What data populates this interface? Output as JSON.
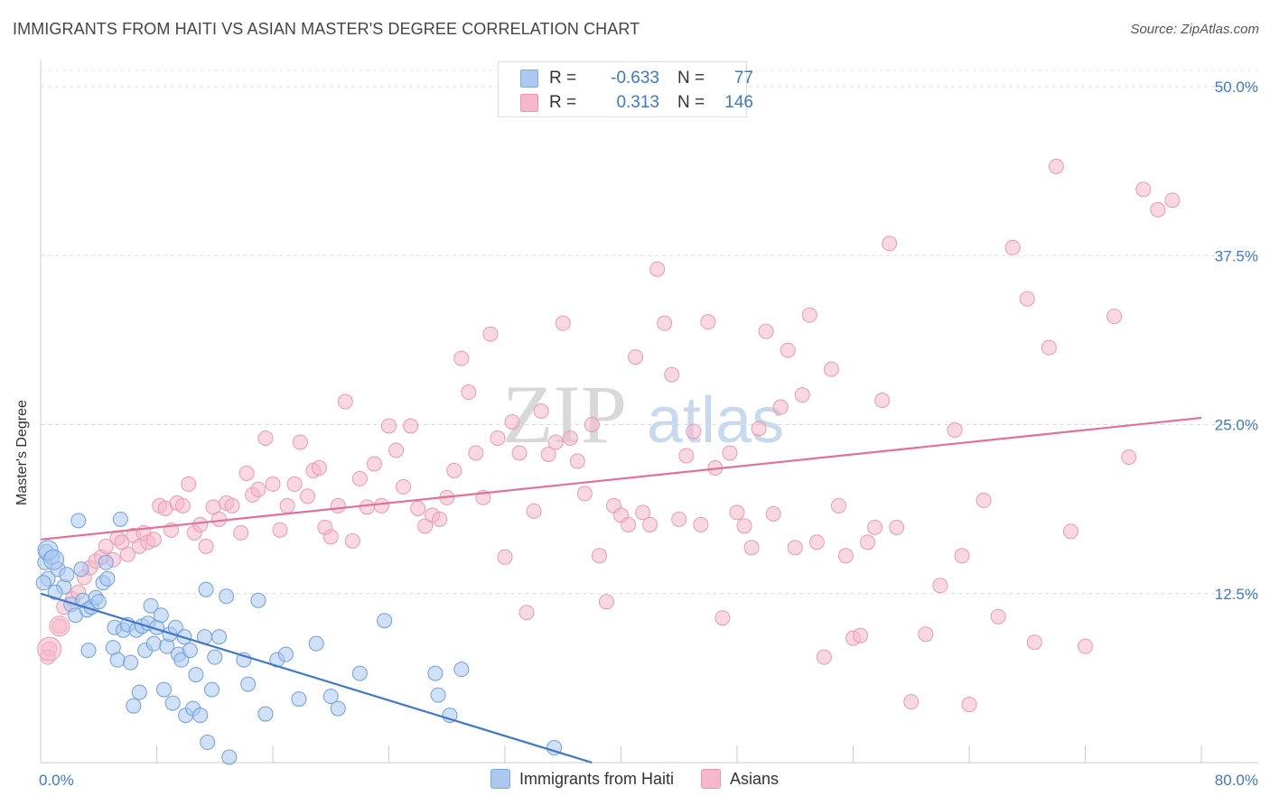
{
  "title": "IMMIGRANTS FROM HAITI VS ASIAN MASTER'S DEGREE CORRELATION CHART",
  "source": "Source: ZipAtlas.com",
  "watermark": {
    "zip": "ZIP",
    "atlas": "atlas"
  },
  "legend": {
    "rows": [
      {
        "r_label": "R =",
        "r_value": "-0.633",
        "n_label": "N =",
        "n_value": "77",
        "color": "#aac8f0"
      },
      {
        "r_label": "R =",
        "r_value": "0.313",
        "n_label": "N =",
        "n_value": "146",
        "color": "#f5b8ca"
      }
    ]
  },
  "bottom_legend": [
    {
      "label": "Immigrants from Haiti",
      "color": "#aac8f0"
    },
    {
      "label": "Asians",
      "color": "#f5b8ca"
    }
  ],
  "chart_data": {
    "type": "scatter",
    "title": "IMMIGRANTS FROM HAITI VS ASIAN MASTER'S DEGREE CORRELATION CHART",
    "xlabel": "",
    "ylabel": "Master's Degree",
    "xlim": [
      0,
      80
    ],
    "ylim": [
      0,
      50
    ],
    "x_tick_labels": [
      "0.0%",
      "80.0%"
    ],
    "y_tick_labels": [
      "12.5%",
      "25.0%",
      "37.5%",
      "50.0%"
    ],
    "y_ticks": [
      12.5,
      25.0,
      37.5,
      50.0
    ],
    "grid": true,
    "legend_position": "top-center",
    "colors": {
      "haiti": "#3f78c9",
      "haiti_fill": "#aac8f0",
      "asians": "#e0719a",
      "asians_fill": "#f5b8ca",
      "tick": "#3f78c9"
    },
    "series": [
      {
        "name": "Immigrants from Haiti",
        "trend": {
          "x": [
            0,
            38
          ],
          "y": [
            12.5,
            0
          ]
        },
        "points": [
          [
            0.3,
            14.8
          ],
          [
            0.4,
            15.6
          ],
          [
            0.5,
            13.6
          ],
          [
            0.8,
            15.2
          ],
          [
            1.2,
            14.3
          ],
          [
            1.6,
            13.0
          ],
          [
            1.8,
            13.9
          ],
          [
            2.1,
            11.7
          ],
          [
            2.4,
            10.9
          ],
          [
            2.6,
            17.9
          ],
          [
            2.8,
            14.3
          ],
          [
            2.9,
            12.0
          ],
          [
            3.2,
            11.3
          ],
          [
            3.3,
            8.3
          ],
          [
            3.5,
            11.5
          ],
          [
            3.8,
            12.2
          ],
          [
            4.0,
            11.9
          ],
          [
            4.3,
            13.3
          ],
          [
            4.5,
            14.8
          ],
          [
            4.6,
            13.6
          ],
          [
            5.0,
            8.5
          ],
          [
            5.1,
            10.0
          ],
          [
            5.3,
            7.6
          ],
          [
            5.5,
            18.0
          ],
          [
            5.7,
            9.8
          ],
          [
            6.0,
            10.2
          ],
          [
            6.2,
            7.4
          ],
          [
            6.4,
            4.2
          ],
          [
            6.6,
            9.8
          ],
          [
            6.8,
            5.2
          ],
          [
            7.0,
            10.1
          ],
          [
            7.2,
            8.3
          ],
          [
            7.4,
            10.3
          ],
          [
            7.6,
            11.6
          ],
          [
            7.8,
            8.8
          ],
          [
            8.0,
            10.0
          ],
          [
            8.3,
            10.9
          ],
          [
            8.5,
            5.4
          ],
          [
            8.7,
            8.6
          ],
          [
            8.9,
            9.5
          ],
          [
            9.1,
            4.4
          ],
          [
            9.3,
            10.0
          ],
          [
            9.5,
            8.0
          ],
          [
            9.7,
            7.6
          ],
          [
            9.9,
            9.3
          ],
          [
            10.0,
            3.5
          ],
          [
            10.3,
            8.3
          ],
          [
            10.5,
            4.0
          ],
          [
            10.7,
            6.5
          ],
          [
            11.0,
            3.5
          ],
          [
            11.3,
            9.3
          ],
          [
            11.4,
            12.8
          ],
          [
            11.5,
            1.5
          ],
          [
            11.8,
            5.4
          ],
          [
            12.0,
            7.8
          ],
          [
            12.3,
            9.3
          ],
          [
            12.8,
            12.3
          ],
          [
            13.0,
            0.4
          ],
          [
            14.0,
            7.6
          ],
          [
            14.3,
            5.8
          ],
          [
            15.0,
            12.0
          ],
          [
            15.5,
            3.6
          ],
          [
            16.3,
            7.6
          ],
          [
            16.9,
            8.0
          ],
          [
            17.8,
            4.7
          ],
          [
            19.0,
            8.8
          ],
          [
            20.0,
            4.9
          ],
          [
            20.5,
            4.0
          ],
          [
            22.0,
            6.6
          ],
          [
            23.7,
            10.5
          ],
          [
            27.2,
            6.6
          ],
          [
            27.4,
            5.0
          ],
          [
            28.2,
            3.5
          ],
          [
            29.0,
            6.9
          ],
          [
            35.4,
            1.1
          ],
          [
            0.2,
            13.3
          ],
          [
            1.0,
            12.6
          ]
        ],
        "big_points": [
          [
            0.5,
            15.7
          ],
          [
            0.9,
            15.0
          ]
        ]
      },
      {
        "name": "Asians",
        "trend": {
          "x": [
            0,
            80
          ],
          "y": [
            16.5,
            25.5
          ]
        },
        "points": [
          [
            0.6,
            8.4
          ],
          [
            0.5,
            7.8
          ],
          [
            1.3,
            10.1
          ],
          [
            1.6,
            11.5
          ],
          [
            2.2,
            12.1
          ],
          [
            2.6,
            12.6
          ],
          [
            3.0,
            13.7
          ],
          [
            3.4,
            14.4
          ],
          [
            3.8,
            14.9
          ],
          [
            4.2,
            15.2
          ],
          [
            4.5,
            16.0
          ],
          [
            5.0,
            15.0
          ],
          [
            5.3,
            16.6
          ],
          [
            5.6,
            16.3
          ],
          [
            6.0,
            15.4
          ],
          [
            6.4,
            16.8
          ],
          [
            6.8,
            16.0
          ],
          [
            7.1,
            17.0
          ],
          [
            7.4,
            16.3
          ],
          [
            7.8,
            16.5
          ],
          [
            8.2,
            19.0
          ],
          [
            8.6,
            18.8
          ],
          [
            9.0,
            17.2
          ],
          [
            9.4,
            19.2
          ],
          [
            9.8,
            19.0
          ],
          [
            10.2,
            20.6
          ],
          [
            10.6,
            17.0
          ],
          [
            11.0,
            17.6
          ],
          [
            11.4,
            16.0
          ],
          [
            11.9,
            18.9
          ],
          [
            12.3,
            18.0
          ],
          [
            12.8,
            19.2
          ],
          [
            13.2,
            19.0
          ],
          [
            13.8,
            17.0
          ],
          [
            14.2,
            21.4
          ],
          [
            14.6,
            19.8
          ],
          [
            15.0,
            20.2
          ],
          [
            15.5,
            24.0
          ],
          [
            16.0,
            20.6
          ],
          [
            16.5,
            17.2
          ],
          [
            17.0,
            19.0
          ],
          [
            17.5,
            20.6
          ],
          [
            17.9,
            23.7
          ],
          [
            18.4,
            19.7
          ],
          [
            18.8,
            21.6
          ],
          [
            19.2,
            21.8
          ],
          [
            19.6,
            17.4
          ],
          [
            20.0,
            16.7
          ],
          [
            20.5,
            19.0
          ],
          [
            21.0,
            26.7
          ],
          [
            21.5,
            16.4
          ],
          [
            22.0,
            21.0
          ],
          [
            22.5,
            18.9
          ],
          [
            23.0,
            22.1
          ],
          [
            23.5,
            19.0
          ],
          [
            24.0,
            24.9
          ],
          [
            24.5,
            23.1
          ],
          [
            25.0,
            20.4
          ],
          [
            25.5,
            24.9
          ],
          [
            26.0,
            18.8
          ],
          [
            26.5,
            17.5
          ],
          [
            27.0,
            18.3
          ],
          [
            27.5,
            18.0
          ],
          [
            28.0,
            19.6
          ],
          [
            28.5,
            21.6
          ],
          [
            29.0,
            29.9
          ],
          [
            29.5,
            27.4
          ],
          [
            30.0,
            22.9
          ],
          [
            30.5,
            19.6
          ],
          [
            31.0,
            31.7
          ],
          [
            31.5,
            24.0
          ],
          [
            32.0,
            15.2
          ],
          [
            32.5,
            25.2
          ],
          [
            33.0,
            22.9
          ],
          [
            33.5,
            11.1
          ],
          [
            34.0,
            18.6
          ],
          [
            34.5,
            26.0
          ],
          [
            35.0,
            22.8
          ],
          [
            35.5,
            23.7
          ],
          [
            36.0,
            32.5
          ],
          [
            36.5,
            24.0
          ],
          [
            37.0,
            22.3
          ],
          [
            37.5,
            19.9
          ],
          [
            38.0,
            25.0
          ],
          [
            38.5,
            15.3
          ],
          [
            39.0,
            11.9
          ],
          [
            39.5,
            19.0
          ],
          [
            40.0,
            18.3
          ],
          [
            40.5,
            17.6
          ],
          [
            41.0,
            30.0
          ],
          [
            41.5,
            18.5
          ],
          [
            42.0,
            17.6
          ],
          [
            42.5,
            36.5
          ],
          [
            43.0,
            32.5
          ],
          [
            43.5,
            28.7
          ],
          [
            44.0,
            18.0
          ],
          [
            44.5,
            22.7
          ],
          [
            45.0,
            24.5
          ],
          [
            45.5,
            17.6
          ],
          [
            46.0,
            32.6
          ],
          [
            46.5,
            21.8
          ],
          [
            47.0,
            10.7
          ],
          [
            47.5,
            22.9
          ],
          [
            48.0,
            18.5
          ],
          [
            48.5,
            17.5
          ],
          [
            49.0,
            15.9
          ],
          [
            49.5,
            24.7
          ],
          [
            50.0,
            31.9
          ],
          [
            50.5,
            18.4
          ],
          [
            51.0,
            26.3
          ],
          [
            51.5,
            30.5
          ],
          [
            52.0,
            15.9
          ],
          [
            52.5,
            27.2
          ],
          [
            53.0,
            33.1
          ],
          [
            53.5,
            16.3
          ],
          [
            54.0,
            7.8
          ],
          [
            54.5,
            29.1
          ],
          [
            55.0,
            19.0
          ],
          [
            55.5,
            15.3
          ],
          [
            56.0,
            9.2
          ],
          [
            56.5,
            9.4
          ],
          [
            57.0,
            16.3
          ],
          [
            57.5,
            17.4
          ],
          [
            58.0,
            26.8
          ],
          [
            58.5,
            38.4
          ],
          [
            59.0,
            17.4
          ],
          [
            60.0,
            4.5
          ],
          [
            61.0,
            9.5
          ],
          [
            62.0,
            13.1
          ],
          [
            63.0,
            24.6
          ],
          [
            63.5,
            15.3
          ],
          [
            64.0,
            4.3
          ],
          [
            65.0,
            19.4
          ],
          [
            66.0,
            10.8
          ],
          [
            67.0,
            38.1
          ],
          [
            68.0,
            34.3
          ],
          [
            68.5,
            8.9
          ],
          [
            69.5,
            30.7
          ],
          [
            70.0,
            44.1
          ],
          [
            71.0,
            17.1
          ],
          [
            72.0,
            8.6
          ],
          [
            74.0,
            33.0
          ],
          [
            75.0,
            22.6
          ],
          [
            76.0,
            42.4
          ],
          [
            77.0,
            40.9
          ],
          [
            78.0,
            41.6
          ]
        ]
      }
    ]
  }
}
